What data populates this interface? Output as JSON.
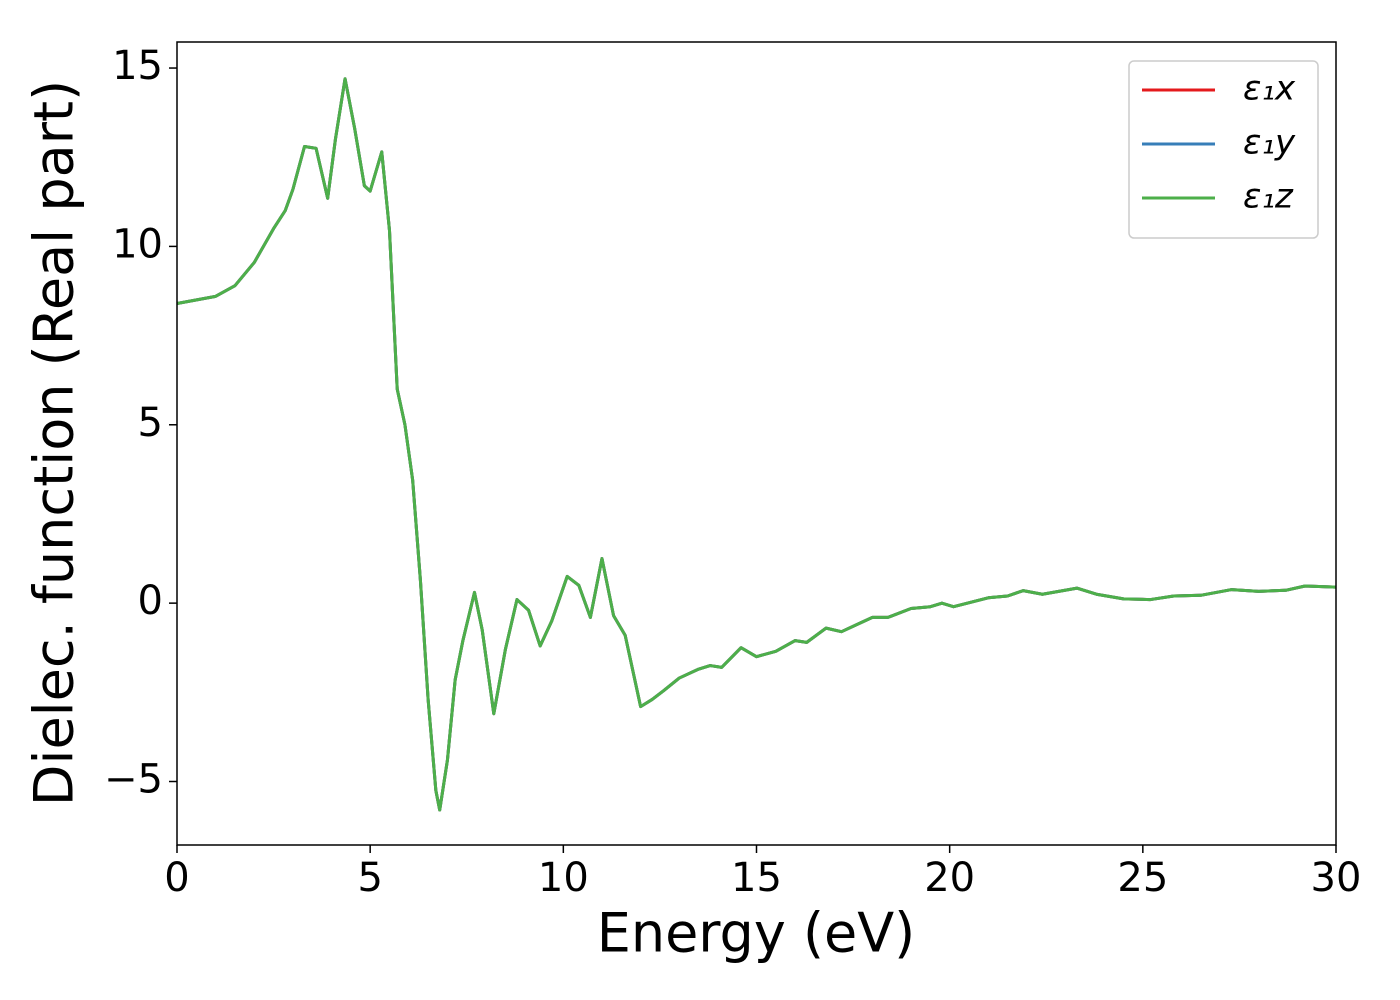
{
  "chart_data": {
    "type": "line",
    "xlabel": "Energy (eV)",
    "ylabel": "Dielec. function (Real part)",
    "xlim": [
      0,
      30
    ],
    "ylim": [
      -6.78,
      15.73
    ],
    "xticks": [
      0,
      5,
      10,
      15,
      20,
      25,
      30
    ],
    "yticks": [
      {
        "value": -5,
        "label": "−5"
      },
      0,
      5,
      10,
      15
    ],
    "legend": "upper right",
    "x": [
      0,
      1,
      1.5,
      2,
      2.5,
      2.8,
      3.0,
      3.3,
      3.6,
      3.9,
      4.1,
      4.35,
      4.6,
      4.85,
      5.0,
      5.3,
      5.5,
      5.7,
      5.9,
      6.1,
      6.3,
      6.5,
      6.7,
      6.8,
      7.0,
      7.2,
      7.4,
      7.7,
      7.9,
      8.2,
      8.5,
      8.8,
      9.1,
      9.4,
      9.7,
      10.1,
      10.4,
      10.7,
      11.0,
      11.3,
      11.6,
      12.0,
      12.3,
      12.6,
      13.0,
      13.5,
      13.8,
      14.1,
      14.6,
      15.0,
      15.5,
      16.0,
      16.3,
      16.8,
      17.2,
      17.6,
      18.0,
      18.4,
      19.0,
      19.5,
      19.8,
      20.1,
      21,
      21.5,
      21.9,
      22.4,
      23.3,
      23.8,
      24.5,
      25.2,
      25.8,
      26.5,
      27.3,
      28.0,
      28.7,
      29.2,
      30
    ],
    "series": [
      {
        "name": "ε₁x",
        "color": "#e41a1c",
        "values": [
          8.4,
          8.6,
          8.9,
          9.55,
          10.5,
          11.0,
          11.6,
          12.8,
          12.75,
          11.35,
          13.0,
          14.7,
          13.3,
          11.7,
          11.55,
          12.65,
          10.45,
          6.0,
          5.0,
          3.45,
          0.65,
          -2.7,
          -5.25,
          -5.8,
          -4.4,
          -2.15,
          -1.05,
          0.3,
          -0.75,
          -3.1,
          -1.3,
          0.1,
          -0.2,
          -1.2,
          -0.5,
          0.75,
          0.5,
          -0.4,
          1.25,
          -0.35,
          -0.9,
          -2.9,
          -2.7,
          -2.45,
          -2.1,
          -1.85,
          -1.75,
          -1.8,
          -1.25,
          -1.5,
          -1.35,
          -1.05,
          -1.1,
          -0.7,
          -0.8,
          -0.6,
          -0.4,
          -0.4,
          -0.15,
          -0.1,
          0.0,
          -0.1,
          0.15,
          0.2,
          0.35,
          0.25,
          0.42,
          0.25,
          0.12,
          0.1,
          0.2,
          0.22,
          0.38,
          0.33,
          0.36,
          0.48,
          0.45
        ]
      },
      {
        "name": "ε₁y",
        "color": "#377eb8",
        "values": [
          8.4,
          8.6,
          8.9,
          9.55,
          10.5,
          11.0,
          11.6,
          12.8,
          12.75,
          11.35,
          13.0,
          14.7,
          13.3,
          11.7,
          11.55,
          12.65,
          10.45,
          6.0,
          5.0,
          3.45,
          0.65,
          -2.7,
          -5.25,
          -5.8,
          -4.4,
          -2.15,
          -1.05,
          0.3,
          -0.75,
          -3.1,
          -1.3,
          0.1,
          -0.2,
          -1.2,
          -0.5,
          0.75,
          0.5,
          -0.4,
          1.25,
          -0.35,
          -0.9,
          -2.9,
          -2.7,
          -2.45,
          -2.1,
          -1.85,
          -1.75,
          -1.8,
          -1.25,
          -1.5,
          -1.35,
          -1.05,
          -1.1,
          -0.7,
          -0.8,
          -0.6,
          -0.4,
          -0.4,
          -0.15,
          -0.1,
          0.0,
          -0.1,
          0.15,
          0.2,
          0.35,
          0.25,
          0.42,
          0.25,
          0.12,
          0.1,
          0.2,
          0.22,
          0.38,
          0.33,
          0.36,
          0.48,
          0.45
        ]
      },
      {
        "name": "ε₁z",
        "color": "#4daf4a",
        "values": [
          8.4,
          8.6,
          8.9,
          9.55,
          10.5,
          11.0,
          11.6,
          12.8,
          12.75,
          11.35,
          13.0,
          14.7,
          13.3,
          11.7,
          11.55,
          12.65,
          10.45,
          6.0,
          5.0,
          3.45,
          0.65,
          -2.7,
          -5.25,
          -5.8,
          -4.4,
          -2.15,
          -1.05,
          0.3,
          -0.75,
          -3.1,
          -1.3,
          0.1,
          -0.2,
          -1.2,
          -0.5,
          0.75,
          0.5,
          -0.4,
          1.25,
          -0.35,
          -0.9,
          -2.9,
          -2.7,
          -2.45,
          -2.1,
          -1.85,
          -1.75,
          -1.8,
          -1.25,
          -1.5,
          -1.35,
          -1.05,
          -1.1,
          -0.7,
          -0.8,
          -0.6,
          -0.4,
          -0.4,
          -0.15,
          -0.1,
          0.0,
          -0.1,
          0.15,
          0.2,
          0.35,
          0.25,
          0.42,
          0.25,
          0.12,
          0.1,
          0.2,
          0.22,
          0.38,
          0.33,
          0.36,
          0.48,
          0.45
        ]
      }
    ]
  }
}
